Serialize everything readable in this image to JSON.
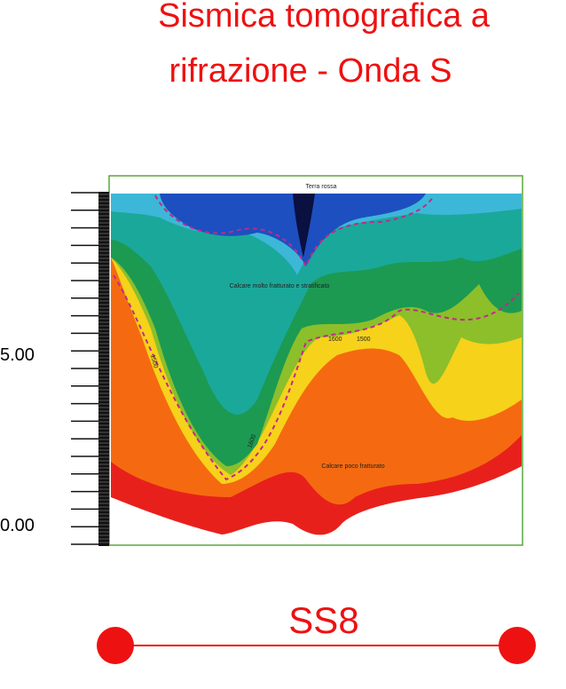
{
  "header": {
    "title_lines": [
      "Sismica tomografica a",
      "rifrazione - Onda S"
    ]
  },
  "figure": {
    "axis_labels": [
      "5.00",
      "0.00"
    ],
    "annotations": {
      "top": "Terra rossa",
      "middle": "Calcare molto fratturato e stratificato",
      "bottom": "Calcare poco fratturato",
      "contour_a": "1500",
      "contour_b": "1500",
      "contour_c": "1600",
      "contour_d": "1600"
    }
  },
  "section": {
    "label": "SS8"
  }
}
